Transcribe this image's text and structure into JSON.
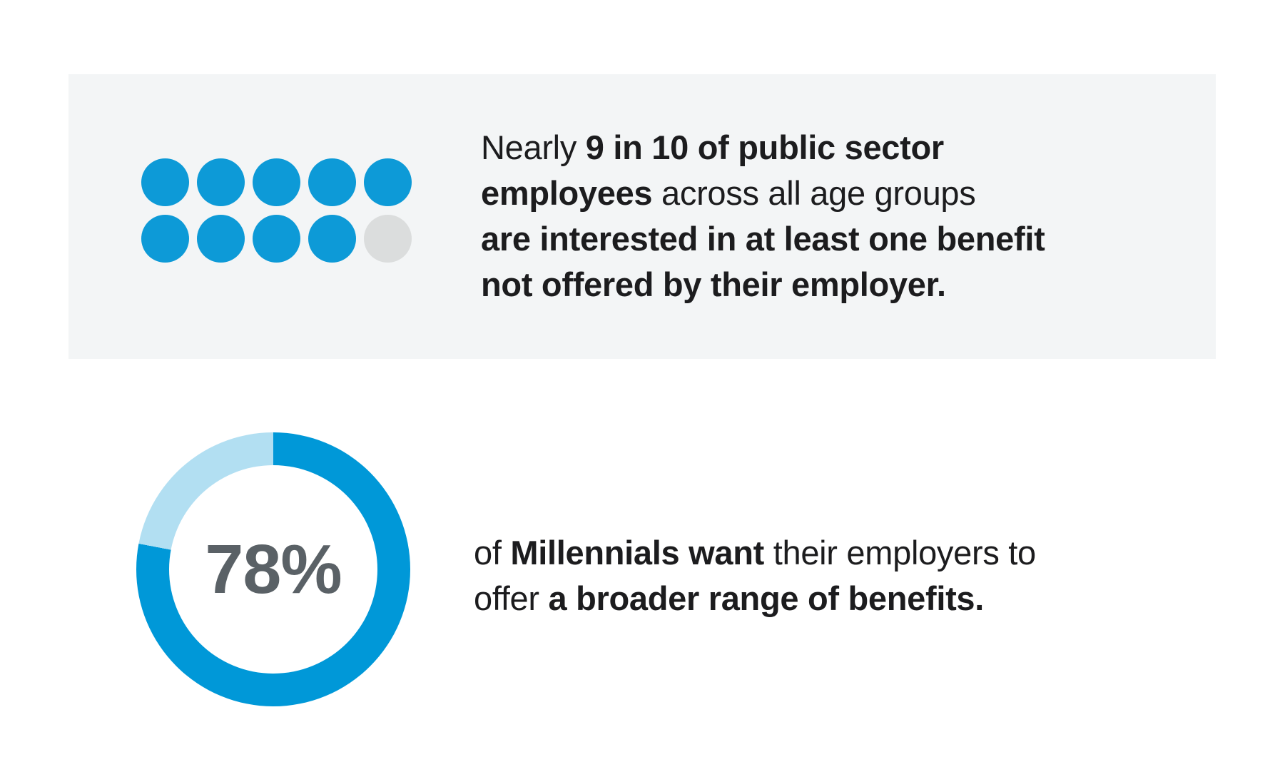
{
  "colors": {
    "page_bg": "#ffffff",
    "panel_bg": "#f3f5f6",
    "dot_blue": "#0d9ad7",
    "dot_empty_gray": "#dbdddd",
    "donut_blue": "#0098d8",
    "donut_light_blue": "#b2dff2",
    "text_dark": "#1c1c1e",
    "percent_gray": "#5a6166"
  },
  "top_panel": {
    "statement_lines": [
      [
        {
          "t": "Nearly ",
          "b": false
        },
        {
          "t": "9 in 10 of public sector",
          "b": true
        }
      ],
      [
        {
          "t": "employees",
          "b": true
        },
        {
          "t": " across all age groups",
          "b": false
        }
      ],
      [
        {
          "t": "are interested in at least one benefit",
          "b": true
        }
      ],
      [
        {
          "t": "not offered by their employer.",
          "b": true
        }
      ]
    ]
  },
  "bottom_section": {
    "statement_lines": [
      [
        {
          "t": "of ",
          "b": false
        },
        {
          "t": "Millennials want",
          "b": true
        },
        {
          "t": " their employers to",
          "b": false
        }
      ],
      [
        {
          "t": "offer ",
          "b": false
        },
        {
          "t": "a broader range of benefits.",
          "b": true
        }
      ]
    ]
  },
  "chart_data": [
    {
      "type": "pictogram",
      "units_total": 10,
      "units_filled": 9,
      "value_fraction": 0.9,
      "rows": 2,
      "cols": 5,
      "filled_color": "#0d9ad7",
      "empty_color": "#dbdddd",
      "caption": "Nearly 9 in 10 of public sector employees across all age groups are interested in at least one benefit not offered by their employer."
    },
    {
      "type": "pie",
      "subtype": "donut",
      "values": [
        78,
        22
      ],
      "colors": [
        "#0098d8",
        "#b2dff2"
      ],
      "start_angle_deg": 0,
      "direction": "clockwise",
      "center_label": "78%",
      "caption": "78% of Millennials want their employers to offer a broader range of benefits."
    }
  ]
}
